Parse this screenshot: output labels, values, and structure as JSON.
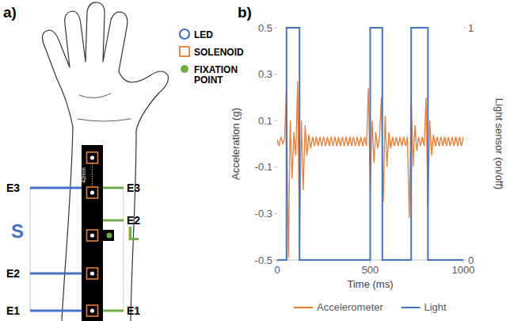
{
  "diagram": {
    "label": "a)",
    "legend": [
      {
        "label": "LED",
        "color": "#4472c4"
      },
      {
        "label": "SOLENOID",
        "color": "#ed7d31"
      },
      {
        "label": "FIXATION POINT",
        "color": "#70ad47"
      }
    ],
    "spacing_label": "42mm",
    "groups": [
      {
        "label": "S",
        "color": "#4472c4",
        "electrodes": [
          "E3",
          "E2",
          "E1"
        ]
      },
      {
        "label": "L",
        "color": "#70ad47",
        "electrodes": [
          "E3",
          "E2",
          "E1"
        ]
      }
    ]
  },
  "chart_label": "b)",
  "chart_data": {
    "type": "line",
    "xlabel": "Time (ms)",
    "ylabel": "Acceleration (g)",
    "y2label": "Light sensor (on/off)",
    "xlim": [
      0,
      1000
    ],
    "xticks": [
      0,
      500,
      1000
    ],
    "ylim": [
      -0.5,
      0.5
    ],
    "yticks": [
      0.5,
      0.3,
      0.1,
      -0.1,
      -0.3,
      -0.5
    ],
    "y2lim": [
      0,
      1
    ],
    "y2ticks": [
      0,
      1
    ],
    "grid": false,
    "legend": "bottom",
    "series": [
      {
        "name": "Accelerometer",
        "color": "#ed7d31",
        "x": [
          0,
          10,
          20,
          30,
          40,
          50,
          60,
          70,
          80,
          90,
          100,
          110,
          120,
          130,
          140,
          150,
          160,
          170,
          180,
          190,
          200,
          210,
          220,
          230,
          240,
          250,
          260,
          270,
          280,
          290,
          300,
          310,
          320,
          330,
          340,
          350,
          360,
          370,
          380,
          390,
          400,
          410,
          420,
          430,
          440,
          450,
          460,
          470,
          480,
          490,
          500,
          510,
          520,
          530,
          540,
          550,
          560,
          570,
          580,
          590,
          600,
          610,
          620,
          630,
          640,
          650,
          660,
          670,
          680,
          690,
          700,
          710,
          720,
          730,
          740,
          750,
          760,
          770,
          780,
          790,
          800,
          810,
          820,
          830,
          840,
          850,
          860,
          870,
          880,
          890,
          900,
          910,
          920,
          930,
          940,
          950,
          960,
          970,
          980,
          990,
          1000
        ],
        "values": [
          0.02,
          -0.01,
          0.03,
          0.0,
          0.02,
          0.25,
          -0.49,
          0.1,
          -0.15,
          0.05,
          -0.05,
          0.27,
          -0.45,
          0.1,
          -0.2,
          0.08,
          -0.05,
          0.04,
          -0.02,
          0.03,
          -0.01,
          0.03,
          -0.01,
          0.03,
          -0.01,
          0.03,
          -0.01,
          0.03,
          -0.01,
          0.03,
          -0.01,
          0.03,
          -0.01,
          0.03,
          -0.01,
          0.03,
          -0.01,
          0.03,
          -0.01,
          0.03,
          -0.01,
          0.03,
          -0.01,
          0.03,
          -0.01,
          0.03,
          -0.01,
          0.03,
          -0.01,
          0.24,
          -0.2,
          0.1,
          -0.08,
          0.05,
          -0.02,
          0.03,
          0.2,
          -0.25,
          0.12,
          -0.1,
          0.05,
          -0.02,
          0.03,
          -0.01,
          0.03,
          -0.01,
          0.03,
          -0.01,
          0.03,
          -0.01,
          0.03,
          -0.32,
          0.2,
          -0.1,
          0.08,
          -0.03,
          0.03,
          -0.01,
          0.03,
          -0.01,
          0.2,
          -0.28,
          0.1,
          -0.05,
          0.04,
          -0.01,
          0.03,
          -0.01,
          0.03,
          -0.01,
          0.03,
          -0.01,
          0.03,
          -0.01,
          0.03,
          -0.01,
          0.03,
          -0.01,
          0.03,
          -0.01,
          0.03
        ]
      },
      {
        "name": "Light",
        "color": "#4472c4",
        "axis": "y2",
        "x": [
          0,
          50,
          50,
          120,
          120,
          500,
          500,
          565,
          565,
          720,
          720,
          810,
          810,
          1000
        ],
        "values": [
          0,
          0,
          1,
          1,
          0,
          0,
          1,
          1,
          0,
          0,
          1,
          1,
          0,
          0
        ]
      }
    ]
  }
}
